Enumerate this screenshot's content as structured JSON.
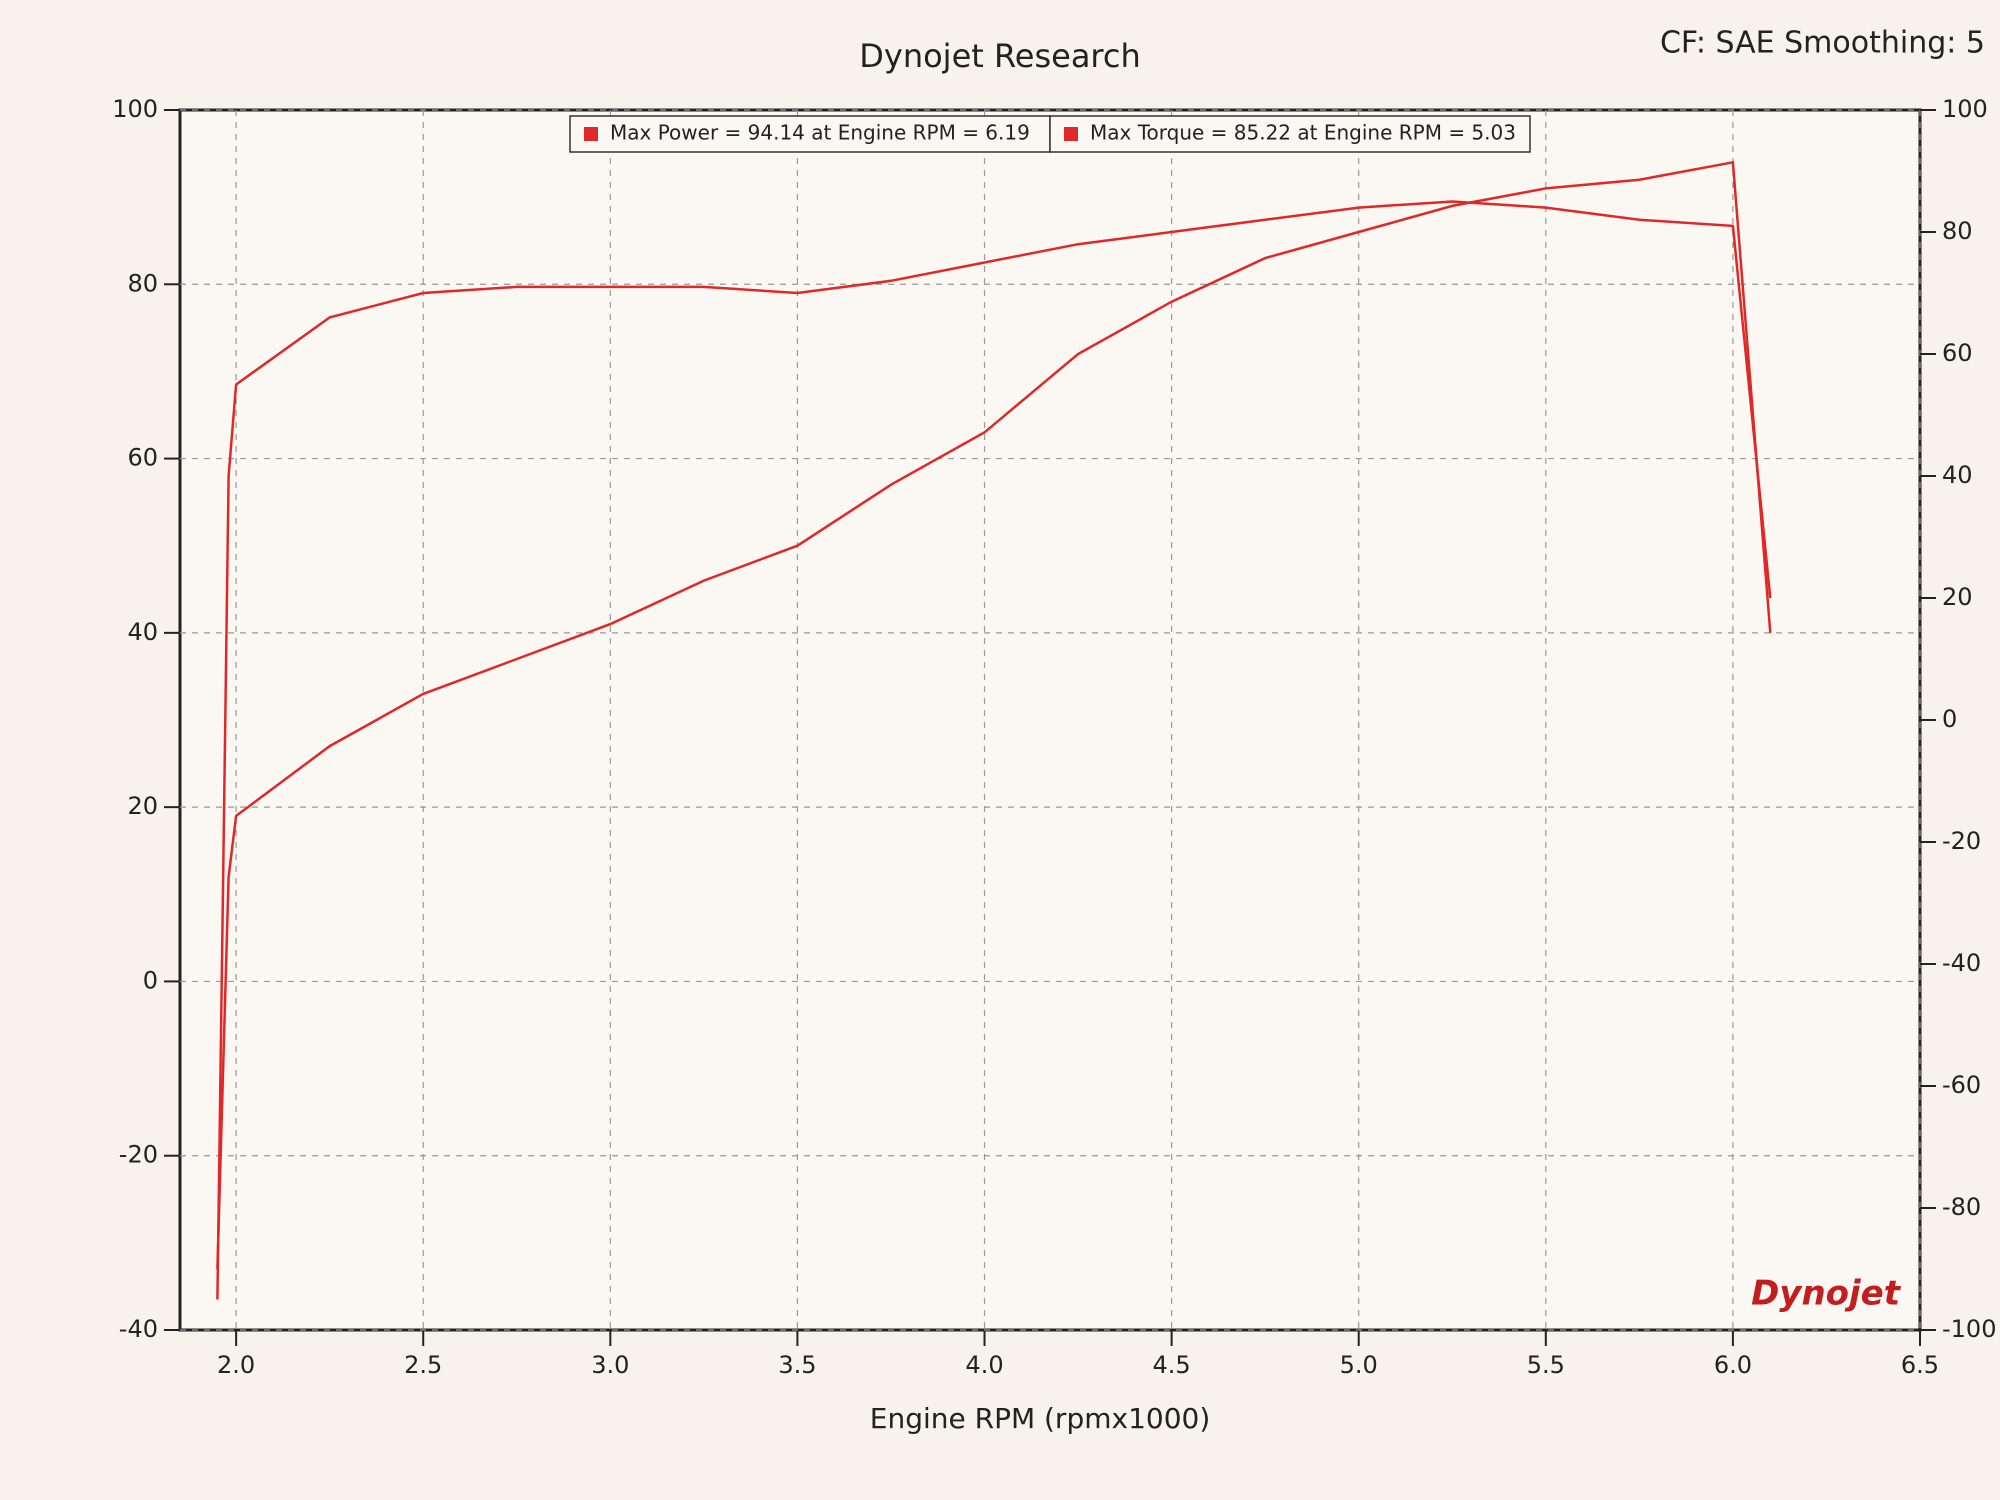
{
  "chart_data": {
    "type": "line",
    "title": "Dynojet Research",
    "subtitle": "CF: SAE Smoothing: 5",
    "x_label": "Engine RPM (rpmx1000)",
    "logo": "Dynojet",
    "x": [
      1.95,
      1.98,
      2.0,
      2.25,
      2.5,
      2.75,
      3.0,
      3.25,
      3.5,
      3.75,
      4.0,
      4.25,
      4.5,
      4.75,
      5.0,
      5.25,
      5.5,
      5.75,
      6.0,
      6.1
    ],
    "series": [
      {
        "name": "Max Power = 94.14 at Engine RPM = 6.19",
        "color": "#e02828",
        "axis": "y",
        "values": [
          -33,
          12,
          19,
          27,
          33,
          37,
          41,
          46,
          50,
          57,
          63,
          72,
          78,
          83,
          86,
          89,
          91,
          92,
          94,
          40
        ]
      },
      {
        "name": "Max Torque = 85.22 at Engine RPM = 5.03",
        "color": "#e02828",
        "axis": "y2",
        "values": [
          -95,
          40,
          55,
          66,
          70,
          71,
          71,
          71,
          70,
          72,
          75,
          78,
          80,
          82,
          84,
          85,
          84,
          82,
          81,
          20
        ]
      }
    ],
    "xlim": [
      1.85,
      6.5
    ],
    "xticks": [
      {
        "value": 2,
        "label": "2.0"
      },
      2.5,
      {
        "value": 3,
        "label": "3.0"
      },
      3.5,
      {
        "value": 4,
        "label": "4.0"
      },
      4.5,
      {
        "value": 5,
        "label": "5.0"
      },
      5.5,
      {
        "value": 6,
        "label": "6.0"
      },
      6.5
    ],
    "ylim": [
      -40,
      100
    ],
    "yticks": [
      -40,
      -20,
      0,
      20,
      40,
      60,
      80,
      100
    ],
    "y2lim": [
      -100,
      100
    ],
    "y2ticks": [
      -100,
      -80,
      -60,
      -40,
      -20,
      0,
      20,
      40,
      60,
      80,
      100
    ],
    "grid": true,
    "legend": "top"
  }
}
